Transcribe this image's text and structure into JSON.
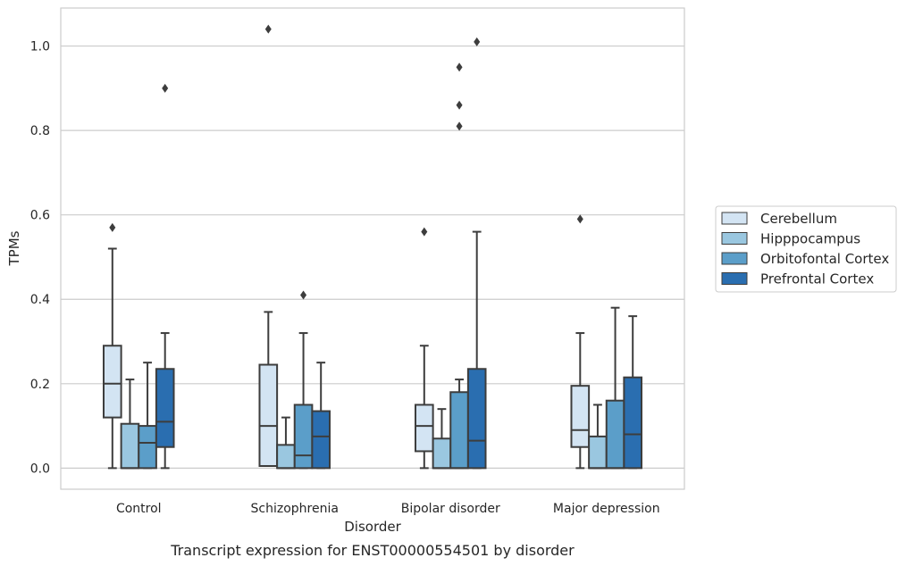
{
  "chart_data": {
    "type": "box",
    "title": "",
    "caption": "Transcript expression for ENST00000554501 by disorder",
    "xlabel": "Disorder",
    "ylabel": "TPMs",
    "ylim": [
      -0.05,
      1.09
    ],
    "yticks": [
      0.0,
      0.2,
      0.4,
      0.6,
      0.8,
      1.0
    ],
    "ytick_labels": [
      "0.0",
      "0.2",
      "0.4",
      "0.6",
      "0.8",
      "1.0"
    ],
    "grid": "horizontal",
    "legend_position": "right",
    "categories": [
      "Control",
      "Schizophrenia",
      "Bipolar disorder",
      "Major depression"
    ],
    "series": [
      {
        "name": "Cerebellum",
        "color": "#d3e4f3",
        "boxes": [
          {
            "whisker_low": 0.0,
            "q1": 0.12,
            "median": 0.2,
            "q3": 0.29,
            "whisker_high": 0.52,
            "outliers": [
              0.57
            ]
          },
          {
            "whisker_low": 0.005,
            "q1": 0.005,
            "median": 0.1,
            "q3": 0.245,
            "whisker_high": 0.37,
            "outliers": [
              1.04
            ]
          },
          {
            "whisker_low": 0.0,
            "q1": 0.04,
            "median": 0.1,
            "q3": 0.15,
            "whisker_high": 0.29,
            "outliers": [
              0.56
            ]
          },
          {
            "whisker_low": 0.0,
            "q1": 0.05,
            "median": 0.09,
            "q3": 0.195,
            "whisker_high": 0.32,
            "outliers": [
              0.59
            ]
          }
        ]
      },
      {
        "name": "Hipppocampus",
        "color": "#9ac7e0",
        "boxes": [
          {
            "whisker_low": 0.0,
            "q1": 0.0,
            "median": 0.0,
            "q3": 0.105,
            "whisker_high": 0.21,
            "outliers": []
          },
          {
            "whisker_low": 0.0,
            "q1": 0.0,
            "median": 0.0,
            "q3": 0.055,
            "whisker_high": 0.12,
            "outliers": []
          },
          {
            "whisker_low": 0.0,
            "q1": 0.0,
            "median": 0.0,
            "q3": 0.07,
            "whisker_high": 0.14,
            "outliers": []
          },
          {
            "whisker_low": 0.0,
            "q1": 0.0,
            "median": 0.0,
            "q3": 0.075,
            "whisker_high": 0.15,
            "outliers": []
          }
        ]
      },
      {
        "name": "Orbitofontal Cortex",
        "color": "#5b9ec9",
        "boxes": [
          {
            "whisker_low": 0.0,
            "q1": 0.0,
            "median": 0.06,
            "q3": 0.1,
            "whisker_high": 0.25,
            "outliers": []
          },
          {
            "whisker_low": 0.0,
            "q1": 0.0,
            "median": 0.03,
            "q3": 0.15,
            "whisker_high": 0.32,
            "outliers": [
              0.41
            ]
          },
          {
            "whisker_low": 0.0,
            "q1": 0.0,
            "median": 0.0,
            "q3": 0.18,
            "whisker_high": 0.21,
            "outliers": [
              0.81,
              0.86,
              0.95
            ]
          },
          {
            "whisker_low": 0.0,
            "q1": 0.0,
            "median": 0.0,
            "q3": 0.16,
            "whisker_high": 0.38,
            "outliers": []
          }
        ]
      },
      {
        "name": "Prefrontal Cortex",
        "color": "#2a6eb0",
        "boxes": [
          {
            "whisker_low": 0.0,
            "q1": 0.05,
            "median": 0.11,
            "q3": 0.235,
            "whisker_high": 0.32,
            "outliers": [
              0.9
            ]
          },
          {
            "whisker_low": 0.0,
            "q1": 0.0,
            "median": 0.075,
            "q3": 0.135,
            "whisker_high": 0.25,
            "outliers": []
          },
          {
            "whisker_low": 0.0,
            "q1": 0.0,
            "median": 0.065,
            "q3": 0.235,
            "whisker_high": 0.56,
            "outliers": [
              1.01
            ]
          },
          {
            "whisker_low": 0.0,
            "q1": 0.0,
            "median": 0.08,
            "q3": 0.215,
            "whisker_high": 0.36,
            "outliers": []
          }
        ]
      }
    ]
  }
}
